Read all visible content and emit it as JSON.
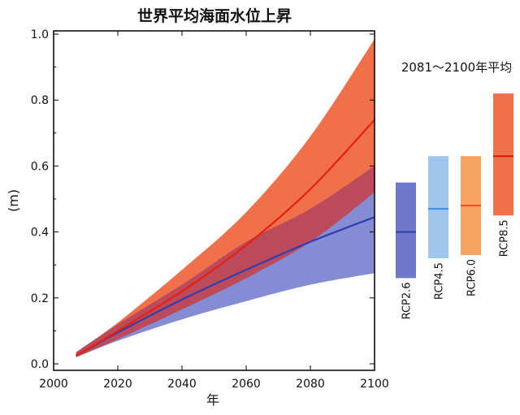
{
  "chart_data": {
    "type": "area",
    "title": "世界平均海面水位上昇",
    "xlabel": "年",
    "ylabel": "(m)",
    "xlim": [
      2000,
      2100
    ],
    "ylim": [
      0,
      1.0
    ],
    "xticks": [
      2000,
      2020,
      2040,
      2060,
      2080,
      2100
    ],
    "yticks": [
      "0.0",
      "0.2",
      "0.4",
      "0.6",
      "0.8",
      "1.0"
    ],
    "grid": false,
    "series": [
      {
        "name": "RCP2.6",
        "color": "#2f3fb0",
        "band_color": "#6f79cc",
        "x": [
          2007,
          2020,
          2040,
          2060,
          2080,
          2100
        ],
        "mean": [
          0.025,
          0.095,
          0.195,
          0.285,
          0.37,
          0.445
        ],
        "lower": [
          0.02,
          0.07,
          0.135,
          0.19,
          0.24,
          0.275
        ],
        "upper": [
          0.035,
          0.12,
          0.24,
          0.37,
          0.47,
          0.6
        ]
      },
      {
        "name": "RCP8.5",
        "color": "#e8200c",
        "band_color": "#f0704a",
        "x": [
          2007,
          2020,
          2040,
          2060,
          2080,
          2100
        ],
        "mean": [
          0.025,
          0.1,
          0.22,
          0.36,
          0.53,
          0.74
        ],
        "lower": [
          0.02,
          0.075,
          0.165,
          0.26,
          0.37,
          0.52
        ],
        "upper": [
          0.035,
          0.125,
          0.285,
          0.46,
          0.69,
          0.985
        ]
      }
    ],
    "side_panel": {
      "title": "2081～2100年平均",
      "bars": [
        {
          "name": "RCP2.6",
          "low": 0.26,
          "mean": 0.4,
          "high": 0.55,
          "color": "#6f79cc",
          "line": "#2f3fb0"
        },
        {
          "name": "RCP4.5",
          "low": 0.32,
          "mean": 0.47,
          "high": 0.63,
          "color": "#9fc6ef",
          "line": "#3d8ee0"
        },
        {
          "name": "RCP6.0",
          "low": 0.33,
          "mean": 0.48,
          "high": 0.63,
          "color": "#f5a262",
          "line": "#e8501a"
        },
        {
          "name": "RCP8.5",
          "low": 0.45,
          "mean": 0.63,
          "high": 0.82,
          "color": "#f0704a",
          "line": "#d41a0a"
        }
      ]
    }
  }
}
